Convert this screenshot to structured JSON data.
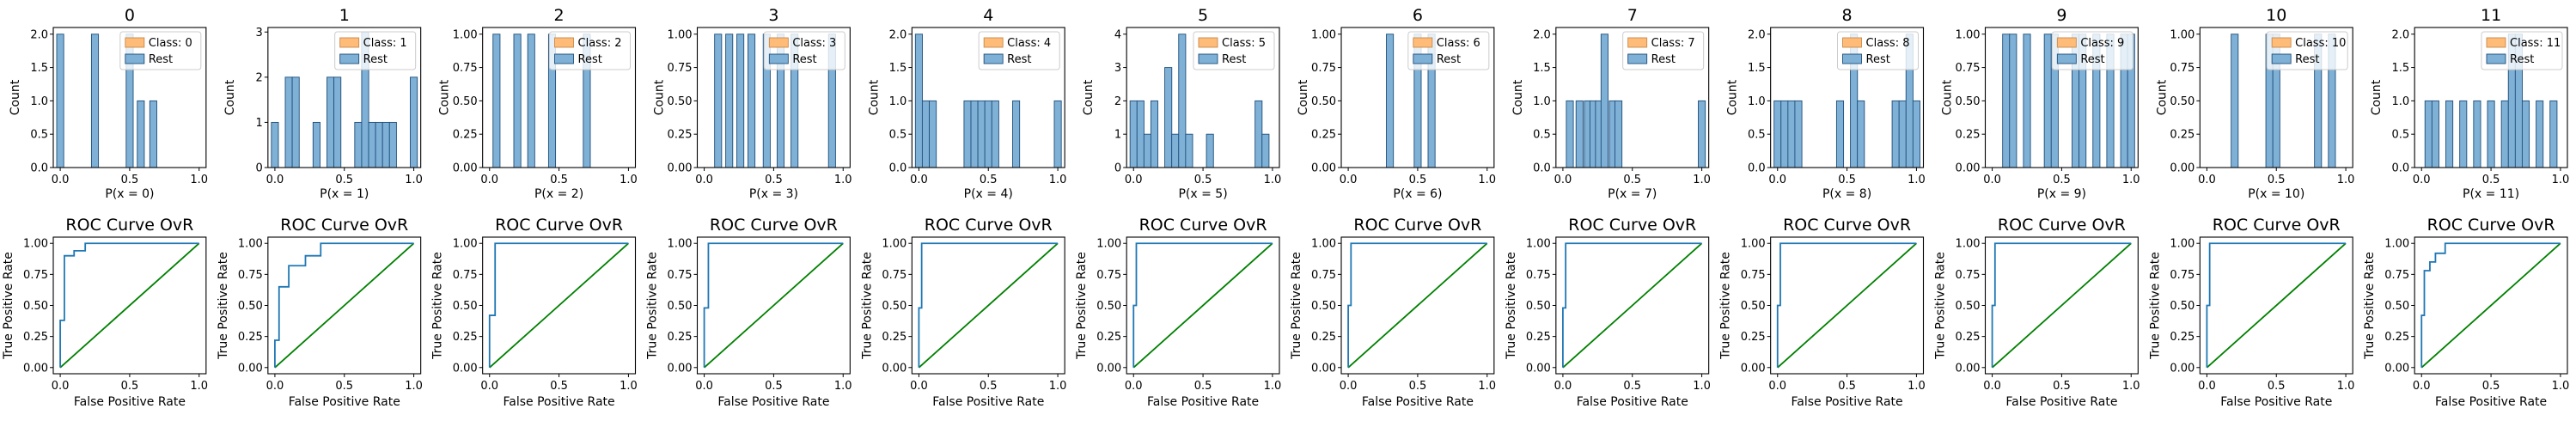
{
  "figure": {
    "hist_xlabel_prefix": "P(x = ",
    "hist_xlabel_suffix": ")",
    "hist_ylabel": "Count",
    "roc_title": "ROC Curve OvR",
    "roc_xlabel": "False Positive Rate",
    "roc_ylabel": "True Positive Rate",
    "legend_class_prefix": "Class: ",
    "legend_rest": "Rest",
    "colors": {
      "class": "#ffbb78",
      "class_edge": "#c98a4b",
      "rest": "#7fb0d6",
      "rest_edge": "#1f4f7a",
      "roc": "#1f77b4",
      "diag": "#008000"
    }
  },
  "chart_data": [
    {
      "panel": 0,
      "type": "bar",
      "title": "0",
      "xlabel": "P(x = 0)",
      "ylabel": "Count",
      "legend": [
        "Class: 0",
        "Rest"
      ],
      "legend_loc": "upper right",
      "xlim": [
        -0.05,
        1.05
      ],
      "ylim": [
        0,
        2.1
      ],
      "yticks": [
        0,
        0.5,
        1,
        1.5,
        2
      ],
      "xticks": [
        0,
        0.5,
        1
      ],
      "rest_bars": [
        {
          "x": 0.0,
          "count": 2
        },
        {
          "x": 0.25,
          "count": 2
        },
        {
          "x": 0.5,
          "count": 2
        },
        {
          "x": 0.58,
          "count": 1
        },
        {
          "x": 0.67,
          "count": 1
        }
      ],
      "roc": {
        "fpr": [
          0,
          0,
          0.03,
          0.03,
          0.1,
          0.1,
          0.18,
          0.18,
          1
        ],
        "tpr": [
          0,
          0.38,
          0.38,
          0.9,
          0.9,
          0.94,
          0.94,
          1,
          1
        ]
      }
    },
    {
      "panel": 1,
      "type": "bar",
      "title": "1",
      "xlabel": "P(x = 1)",
      "ylabel": "Count",
      "legend": [
        "Class: 1",
        "Rest"
      ],
      "legend_loc": "upper right",
      "xlim": [
        -0.05,
        1.05
      ],
      "ylim": [
        0,
        3.1
      ],
      "yticks": [
        0,
        1,
        2,
        3
      ],
      "xticks": [
        0,
        0.5,
        1
      ],
      "rest_bars": [
        {
          "x": 0.0,
          "count": 1
        },
        {
          "x": 0.1,
          "count": 2
        },
        {
          "x": 0.15,
          "count": 2
        },
        {
          "x": 0.3,
          "count": 1
        },
        {
          "x": 0.4,
          "count": 2
        },
        {
          "x": 0.45,
          "count": 2
        },
        {
          "x": 0.6,
          "count": 1
        },
        {
          "x": 0.65,
          "count": 3
        },
        {
          "x": 0.7,
          "count": 1
        },
        {
          "x": 0.75,
          "count": 1
        },
        {
          "x": 0.8,
          "count": 1
        },
        {
          "x": 0.85,
          "count": 1
        },
        {
          "x": 1.0,
          "count": 2
        }
      ],
      "roc": {
        "fpr": [
          0,
          0,
          0.03,
          0.03,
          0.1,
          0.1,
          0.22,
          0.22,
          0.33,
          0.33,
          1
        ],
        "tpr": [
          0,
          0.22,
          0.22,
          0.65,
          0.65,
          0.82,
          0.82,
          0.9,
          0.9,
          1,
          1
        ]
      }
    },
    {
      "panel": 2,
      "type": "bar",
      "title": "2",
      "xlabel": "P(x = 2)",
      "ylabel": "Count",
      "legend": [
        "Class: 2",
        "Rest"
      ],
      "legend_loc": "upper right",
      "xlim": [
        -0.05,
        1.05
      ],
      "ylim": [
        0,
        1.05
      ],
      "yticks": [
        0,
        0.25,
        0.5,
        0.75,
        1
      ],
      "xticks": [
        0,
        0.5,
        1
      ],
      "rest_bars": [
        {
          "x": 0.05,
          "count": 1
        },
        {
          "x": 0.2,
          "count": 1
        },
        {
          "x": 0.3,
          "count": 1
        },
        {
          "x": 0.45,
          "count": 1
        },
        {
          "x": 0.7,
          "count": 1
        }
      ],
      "roc": {
        "fpr": [
          0,
          0,
          0.04,
          0.04,
          1
        ],
        "tpr": [
          0,
          0.42,
          0.42,
          1,
          1
        ]
      }
    },
    {
      "panel": 3,
      "type": "bar",
      "title": "3",
      "xlabel": "P(x = 3)",
      "ylabel": "Count",
      "legend": [
        "Class: 3",
        "Rest"
      ],
      "legend_loc": "upper right",
      "xlim": [
        -0.05,
        1.05
      ],
      "ylim": [
        0,
        1.05
      ],
      "yticks": [
        0,
        0.25,
        0.5,
        0.75,
        1
      ],
      "xticks": [
        0,
        0.5,
        1
      ],
      "rest_bars": [
        {
          "x": 0.1,
          "count": 1
        },
        {
          "x": 0.18,
          "count": 1
        },
        {
          "x": 0.26,
          "count": 1
        },
        {
          "x": 0.34,
          "count": 1
        },
        {
          "x": 0.45,
          "count": 1
        },
        {
          "x": 0.55,
          "count": 1
        },
        {
          "x": 0.65,
          "count": 1
        },
        {
          "x": 0.92,
          "count": 1
        }
      ],
      "roc": {
        "fpr": [
          0,
          0,
          0.03,
          0.03,
          1
        ],
        "tpr": [
          0,
          0.48,
          0.48,
          1,
          1
        ]
      }
    },
    {
      "panel": 4,
      "type": "bar",
      "title": "4",
      "xlabel": "P(x = 4)",
      "ylabel": "Count",
      "legend": [
        "Class: 4",
        "Rest"
      ],
      "legend_loc": "upper right",
      "xlim": [
        -0.05,
        1.05
      ],
      "ylim": [
        0,
        2.1
      ],
      "yticks": [
        0,
        0.5,
        1,
        1.5,
        2
      ],
      "xticks": [
        0,
        0.5,
        1
      ],
      "rest_bars": [
        {
          "x": 0.0,
          "count": 2
        },
        {
          "x": 0.05,
          "count": 1
        },
        {
          "x": 0.1,
          "count": 1
        },
        {
          "x": 0.35,
          "count": 1
        },
        {
          "x": 0.4,
          "count": 1
        },
        {
          "x": 0.45,
          "count": 1
        },
        {
          "x": 0.5,
          "count": 1
        },
        {
          "x": 0.55,
          "count": 1
        },
        {
          "x": 0.7,
          "count": 1
        },
        {
          "x": 1.0,
          "count": 1
        }
      ],
      "roc": {
        "fpr": [
          0,
          0,
          0.02,
          0.02,
          1
        ],
        "tpr": [
          0,
          0.48,
          0.48,
          1,
          1
        ]
      }
    },
    {
      "panel": 5,
      "type": "bar",
      "title": "5",
      "xlabel": "P(x = 5)",
      "ylabel": "Count",
      "legend": [
        "Class: 5",
        "Rest"
      ],
      "legend_loc": "upper right",
      "xlim": [
        -0.05,
        1.05
      ],
      "ylim": [
        0,
        4.2
      ],
      "yticks": [
        0,
        1,
        2,
        3,
        4
      ],
      "xticks": [
        0,
        0.5,
        1
      ],
      "rest_bars": [
        {
          "x": 0.0,
          "count": 2
        },
        {
          "x": 0.05,
          "count": 2
        },
        {
          "x": 0.1,
          "count": 1
        },
        {
          "x": 0.15,
          "count": 2
        },
        {
          "x": 0.25,
          "count": 3
        },
        {
          "x": 0.3,
          "count": 1
        },
        {
          "x": 0.35,
          "count": 4
        },
        {
          "x": 0.4,
          "count": 1
        },
        {
          "x": 0.55,
          "count": 1
        },
        {
          "x": 0.9,
          "count": 2
        },
        {
          "x": 0.95,
          "count": 1
        }
      ],
      "roc": {
        "fpr": [
          0,
          0,
          0.02,
          0.02,
          1
        ],
        "tpr": [
          0,
          0.5,
          0.5,
          1,
          1
        ]
      }
    },
    {
      "panel": 6,
      "type": "bar",
      "title": "6",
      "xlabel": "P(x = 6)",
      "ylabel": "Count",
      "legend": [
        "Class: 6",
        "Rest"
      ],
      "legend_loc": "upper right",
      "xlim": [
        -0.05,
        1.05
      ],
      "ylim": [
        0,
        1.05
      ],
      "yticks": [
        0,
        0.25,
        0.5,
        0.75,
        1
      ],
      "xticks": [
        0,
        0.5,
        1
      ],
      "rest_bars": [
        {
          "x": 0.3,
          "count": 1
        },
        {
          "x": 0.5,
          "count": 1
        },
        {
          "x": 0.6,
          "count": 1
        }
      ],
      "roc": {
        "fpr": [
          0,
          0,
          0.02,
          0.02,
          1
        ],
        "tpr": [
          0,
          0.5,
          0.5,
          1,
          1
        ]
      }
    },
    {
      "panel": 7,
      "type": "bar",
      "title": "7",
      "xlabel": "P(x = 7)",
      "ylabel": "Count",
      "legend": [
        "Class: 7",
        "Rest"
      ],
      "legend_loc": "upper right",
      "xlim": [
        -0.05,
        1.05
      ],
      "ylim": [
        0,
        2.1
      ],
      "yticks": [
        0,
        0.5,
        1,
        1.5,
        2
      ],
      "xticks": [
        0,
        0.5,
        1
      ],
      "rest_bars": [
        {
          "x": 0.05,
          "count": 1
        },
        {
          "x": 0.12,
          "count": 1
        },
        {
          "x": 0.18,
          "count": 1
        },
        {
          "x": 0.22,
          "count": 1
        },
        {
          "x": 0.26,
          "count": 1
        },
        {
          "x": 0.3,
          "count": 2
        },
        {
          "x": 0.36,
          "count": 1
        },
        {
          "x": 0.4,
          "count": 1
        },
        {
          "x": 1.0,
          "count": 1
        }
      ],
      "roc": {
        "fpr": [
          0,
          0,
          0.02,
          0.02,
          1
        ],
        "tpr": [
          0,
          0.48,
          0.48,
          1,
          1
        ]
      }
    },
    {
      "panel": 8,
      "type": "bar",
      "title": "8",
      "xlabel": "P(x = 8)",
      "ylabel": "Count",
      "legend": [
        "Class: 8",
        "Rest"
      ],
      "legend_loc": "upper right",
      "xlim": [
        -0.05,
        1.05
      ],
      "ylim": [
        0,
        2.1
      ],
      "yticks": [
        0,
        0.5,
        1,
        1.5,
        2
      ],
      "xticks": [
        0,
        0.5,
        1
      ],
      "rest_bars": [
        {
          "x": 0.0,
          "count": 1
        },
        {
          "x": 0.05,
          "count": 1
        },
        {
          "x": 0.1,
          "count": 1
        },
        {
          "x": 0.15,
          "count": 1
        },
        {
          "x": 0.45,
          "count": 1
        },
        {
          "x": 0.55,
          "count": 2
        },
        {
          "x": 0.6,
          "count": 1
        },
        {
          "x": 0.85,
          "count": 1
        },
        {
          "x": 0.9,
          "count": 1
        },
        {
          "x": 0.95,
          "count": 2
        },
        {
          "x": 1.0,
          "count": 1
        }
      ],
      "roc": {
        "fpr": [
          0,
          0,
          0.02,
          0.02,
          1
        ],
        "tpr": [
          0,
          0.5,
          0.5,
          1,
          1
        ]
      }
    },
    {
      "panel": 9,
      "type": "bar",
      "title": "9",
      "xlabel": "P(x = 9)",
      "ylabel": "Count",
      "legend": [
        "Class: 9",
        "Rest"
      ],
      "legend_loc": "upper right",
      "xlim": [
        -0.05,
        1.05
      ],
      "ylim": [
        0,
        1.05
      ],
      "yticks": [
        0,
        0.25,
        0.5,
        0.75,
        1
      ],
      "xticks": [
        0,
        0.5,
        1
      ],
      "rest_bars": [
        {
          "x": 0.1,
          "count": 1
        },
        {
          "x": 0.15,
          "count": 1
        },
        {
          "x": 0.25,
          "count": 1
        },
        {
          "x": 0.4,
          "count": 1
        },
        {
          "x": 0.45,
          "count": 1
        },
        {
          "x": 0.6,
          "count": 1
        },
        {
          "x": 0.65,
          "count": 1
        },
        {
          "x": 0.75,
          "count": 1
        },
        {
          "x": 0.85,
          "count": 1
        },
        {
          "x": 0.95,
          "count": 1
        },
        {
          "x": 1.0,
          "count": 1
        }
      ],
      "roc": {
        "fpr": [
          0,
          0,
          0.02,
          0.02,
          1
        ],
        "tpr": [
          0,
          0.5,
          0.5,
          1,
          1
        ]
      }
    },
    {
      "panel": 10,
      "type": "bar",
      "title": "10",
      "xlabel": "P(x = 10)",
      "ylabel": "Count",
      "legend": [
        "Class: 10",
        "Rest"
      ],
      "legend_loc": "upper right",
      "xlim": [
        -0.05,
        1.05
      ],
      "ylim": [
        0,
        1.05
      ],
      "yticks": [
        0,
        0.25,
        0.5,
        0.75,
        1
      ],
      "xticks": [
        0,
        0.5,
        1
      ],
      "rest_bars": [
        {
          "x": 0.2,
          "count": 1
        },
        {
          "x": 0.45,
          "count": 1
        },
        {
          "x": 0.5,
          "count": 1
        },
        {
          "x": 0.8,
          "count": 1
        },
        {
          "x": 0.9,
          "count": 1
        }
      ],
      "roc": {
        "fpr": [
          0,
          0,
          0.02,
          0.02,
          1
        ],
        "tpr": [
          0,
          0.5,
          0.5,
          1,
          1
        ]
      }
    },
    {
      "panel": 11,
      "type": "bar",
      "title": "11",
      "xlabel": "P(x = 11)",
      "ylabel": "Count",
      "legend": [
        "Class: 11",
        "Rest"
      ],
      "legend_loc": "upper right",
      "xlim": [
        -0.05,
        1.05
      ],
      "ylim": [
        0,
        2.1
      ],
      "yticks": [
        0,
        0.5,
        1,
        1.5,
        2
      ],
      "xticks": [
        0,
        0.5,
        1
      ],
      "rest_bars": [
        {
          "x": 0.05,
          "count": 1
        },
        {
          "x": 0.1,
          "count": 1
        },
        {
          "x": 0.2,
          "count": 1
        },
        {
          "x": 0.3,
          "count": 1
        },
        {
          "x": 0.4,
          "count": 1
        },
        {
          "x": 0.5,
          "count": 1
        },
        {
          "x": 0.6,
          "count": 1
        },
        {
          "x": 0.65,
          "count": 2
        },
        {
          "x": 0.7,
          "count": 2
        },
        {
          "x": 0.75,
          "count": 1
        },
        {
          "x": 0.85,
          "count": 1
        },
        {
          "x": 0.95,
          "count": 1
        }
      ],
      "roc": {
        "fpr": [
          0,
          0,
          0.02,
          0.02,
          0.06,
          0.06,
          0.1,
          0.1,
          0.17,
          0.17,
          1
        ],
        "tpr": [
          0,
          0.42,
          0.42,
          0.78,
          0.78,
          0.85,
          0.85,
          0.92,
          0.92,
          1,
          1
        ]
      }
    }
  ]
}
